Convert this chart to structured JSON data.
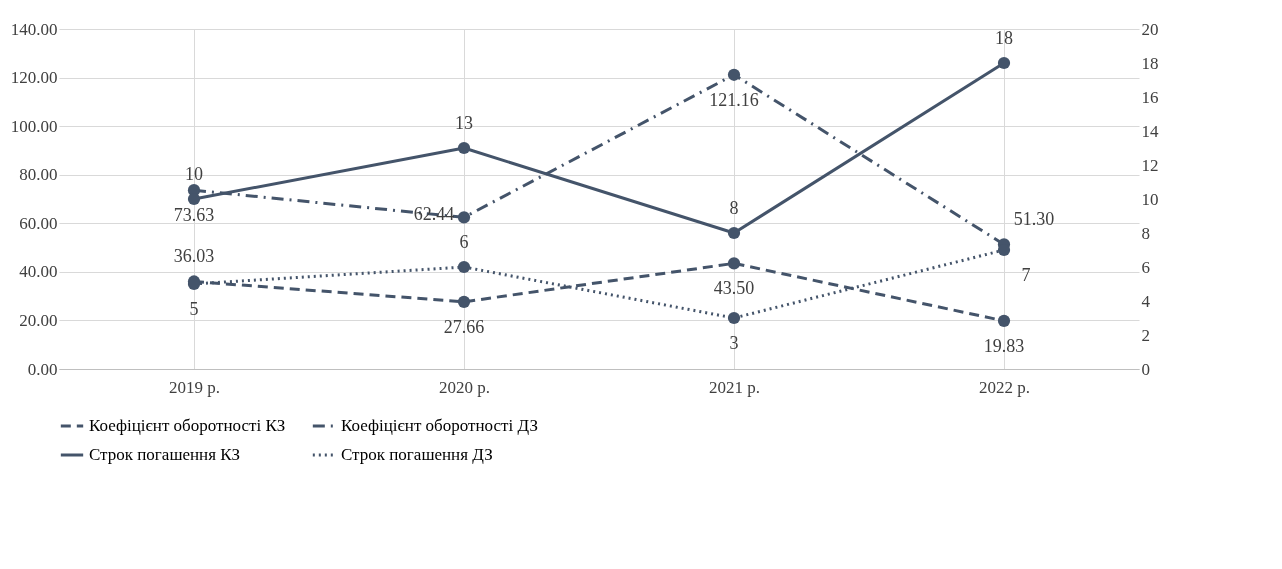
{
  "chart_data": {
    "type": "line",
    "categories": [
      "2019 р.",
      "2020 р.",
      "2021 р.",
      "2022 р."
    ],
    "series": [
      {
        "name": "Коефіцієнт оборотності КЗ",
        "color": "#44546a",
        "line_style": "dashed",
        "values": [
          36.03,
          27.66,
          43.5,
          19.83
        ],
        "value_labels": [
          "36.03",
          "27.66",
          "43.50",
          "19.83"
        ]
      },
      {
        "name": "Коефіцієнт оборотності ДЗ",
        "color": "#44546a",
        "line_style": "dashdot",
        "values": [
          73.63,
          62.44,
          121.16,
          51.3
        ],
        "value_labels": [
          "73.63",
          "62.44",
          "121.16",
          "51.30"
        ]
      },
      {
        "name": "Строк погашення КЗ",
        "color": "#44546a",
        "line_style": "solid",
        "axis": "y2",
        "values": [
          10,
          13,
          8,
          18
        ],
        "value_labels": [
          "10",
          "13",
          "8",
          "18"
        ]
      },
      {
        "name": "Строк погашення ДЗ",
        "color": "#44546a",
        "line_style": "dotted",
        "axis": "y2",
        "values": [
          5,
          6,
          3,
          7
        ],
        "value_labels": [
          "5",
          "6",
          "3",
          "7"
        ]
      }
    ],
    "ylim": [
      0,
      140
    ],
    "yticks": [
      {
        "value": 0,
        "label": "0.00"
      },
      {
        "value": 20,
        "label": "20.00"
      },
      {
        "value": 40,
        "label": "40.00"
      },
      {
        "value": 60,
        "label": "60.00"
      },
      {
        "value": 80,
        "label": "80.00"
      },
      {
        "value": 100,
        "label": "100.00"
      },
      {
        "value": 120,
        "label": "120.00"
      },
      {
        "value": 140,
        "label": "140.00"
      }
    ],
    "y2lim": [
      0,
      20
    ],
    "y2ticks": [
      0,
      2,
      4,
      6,
      8,
      10,
      12,
      14,
      16,
      18,
      20
    ],
    "grid": true,
    "legend": "bottom",
    "marker": "circle"
  }
}
